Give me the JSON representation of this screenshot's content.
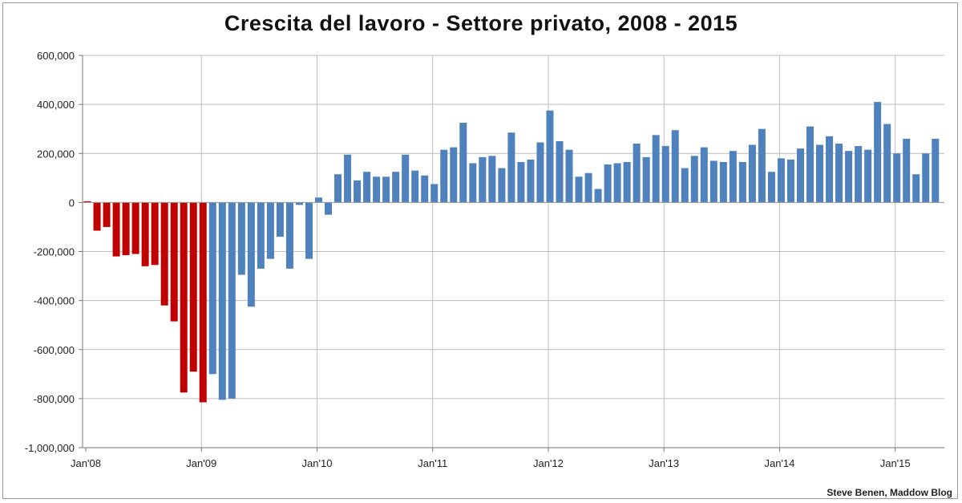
{
  "chart_data": {
    "type": "bar",
    "title": "Crescita del lavoro - Settore privato, 2008 - 2015",
    "xlabel": "",
    "ylabel": "",
    "ylim": [
      -1000000,
      600000
    ],
    "grid": true,
    "y_ticks": [
      {
        "value": 600000,
        "label": "600,000"
      },
      {
        "value": 400000,
        "label": "400,000"
      },
      {
        "value": 200000,
        "label": "200,000"
      },
      {
        "value": 0,
        "label": "0"
      },
      {
        "value": -200000,
        "label": "-200,000"
      },
      {
        "value": -400000,
        "label": "-400,000"
      },
      {
        "value": -600000,
        "label": "-600,000"
      },
      {
        "value": -800000,
        "label": "-800,000"
      },
      {
        "value": -1000000,
        "label": "-1,000,000"
      }
    ],
    "x_ticks": [
      {
        "index": 0,
        "label": "Jan'08"
      },
      {
        "index": 12,
        "label": "Jan'09"
      },
      {
        "index": 24,
        "label": "Jan'10"
      },
      {
        "index": 36,
        "label": "Jan'11"
      },
      {
        "index": 48,
        "label": "Jan'12"
      },
      {
        "index": 60,
        "label": "Jan'13"
      },
      {
        "index": 72,
        "label": "Jan'14"
      },
      {
        "index": 84,
        "label": "Jan'15"
      }
    ],
    "start_month": "Jan'08",
    "series": [
      {
        "color": "#c00000",
        "start_index": 0,
        "values": [
          5000,
          -115000,
          -100000,
          -220000,
          -215000,
          -210000,
          -260000,
          -255000,
          -420000,
          -485000,
          -775000,
          -690000,
          -815000
        ]
      },
      {
        "color": "#4f81bd",
        "start_index": 13,
        "values": [
          -700000,
          -805000,
          -800000,
          -295000,
          -425000,
          -270000,
          -230000,
          -140000,
          -270000,
          -10000,
          -230000,
          20000,
          -50000,
          115000,
          195000,
          90000,
          125000,
          105000,
          105000,
          125000,
          195000,
          130000,
          110000,
          75000,
          215000,
          225000,
          325000,
          160000,
          185000,
          190000,
          140000,
          285000,
          165000,
          175000,
          245000,
          375000,
          250000,
          215000,
          105000,
          120000,
          55000,
          155000,
          160000,
          165000,
          240000,
          185000,
          275000,
          230000,
          295000,
          140000,
          190000,
          225000,
          170000,
          165000,
          210000,
          165000,
          235000,
          300000,
          125000,
          180000,
          175000,
          220000,
          310000,
          235000,
          270000,
          240000,
          210000,
          230000,
          215000,
          410000,
          320000,
          200000,
          260000,
          115000,
          200000,
          260000
        ]
      }
    ]
  },
  "credit": "Steve Benen, Maddow Blog"
}
